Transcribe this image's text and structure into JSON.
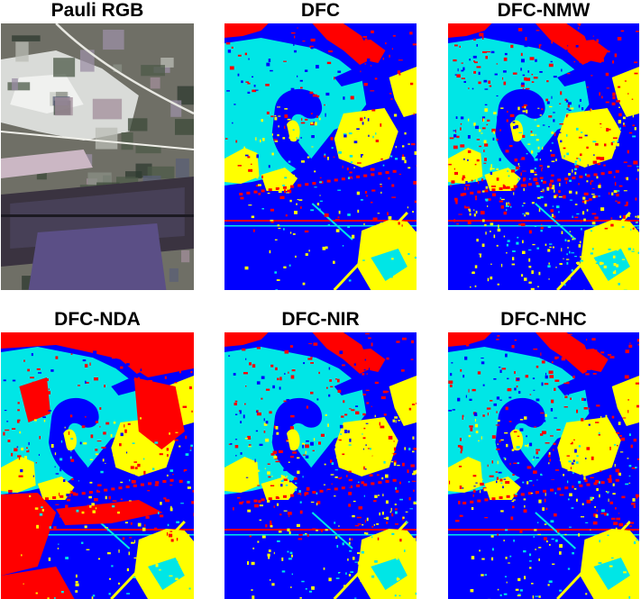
{
  "figure": {
    "panels": [
      {
        "id": "pauli",
        "title": "Pauli RGB",
        "kind": "pauli-rgb"
      },
      {
        "id": "dfc",
        "title": "DFC",
        "kind": "class-map"
      },
      {
        "id": "dfc-nmw",
        "title": "DFC-NMW",
        "kind": "class-map"
      },
      {
        "id": "dfc-nda",
        "title": "DFC-NDA",
        "kind": "class-map"
      },
      {
        "id": "dfc-nir",
        "title": "DFC-NIR",
        "kind": "class-map"
      },
      {
        "id": "dfc-nhc",
        "title": "DFC-NHC",
        "kind": "class-map"
      }
    ],
    "class_colors": {
      "class_1": "#0000ff",
      "class_2": "#00e6e6",
      "class_3": "#ffff00",
      "class_4": "#ff0000"
    }
  }
}
